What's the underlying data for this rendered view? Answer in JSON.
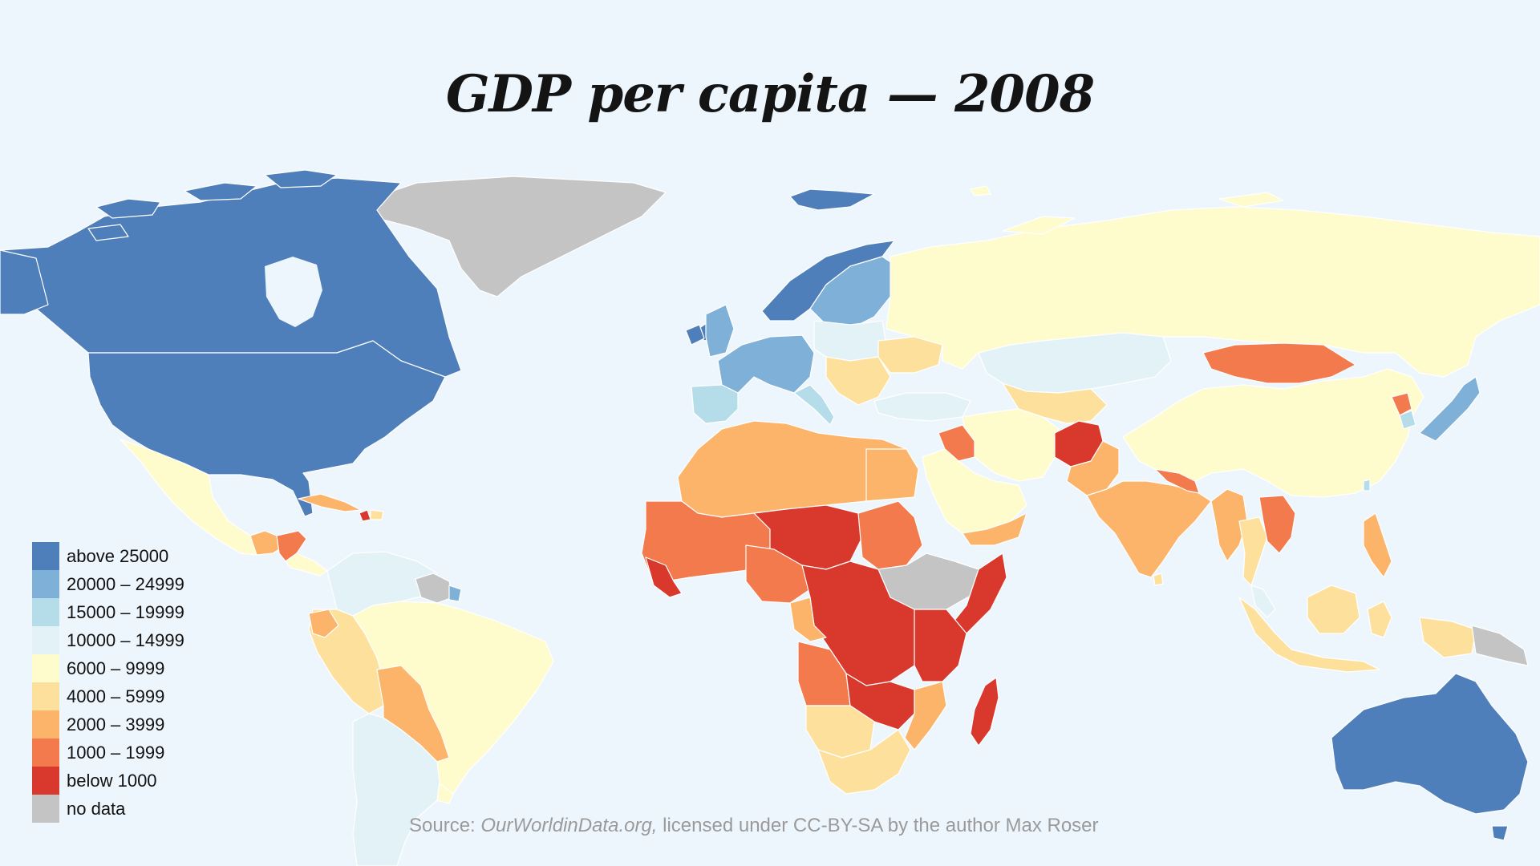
{
  "title": "GDP per capita — 2008",
  "legend": [
    {
      "label": "above 25000",
      "color": "#4f7fbb"
    },
    {
      "label": "20000 – 24999",
      "color": "#7fb0d8"
    },
    {
      "label": "15000 – 19999",
      "color": "#b5dde9"
    },
    {
      "label": "10000 – 14999",
      "color": "#e3f2f7"
    },
    {
      "label": "6000 – 9999",
      "color": "#fefbcc"
    },
    {
      "label": "4000 – 5999",
      "color": "#fde09b"
    },
    {
      "label": "2000 – 3999",
      "color": "#fbb469"
    },
    {
      "label": "1000 – 1999",
      "color": "#f37a4d"
    },
    {
      "label": "below 1000",
      "color": "#d9382c"
    },
    {
      "label": "no data",
      "color": "#c4c4c4"
    }
  ],
  "source": {
    "prefix": "Source: ",
    "site": "OurWorldinData.org,",
    "suffix": " licensed under CC-BY-SA by the author Max Roser"
  }
}
